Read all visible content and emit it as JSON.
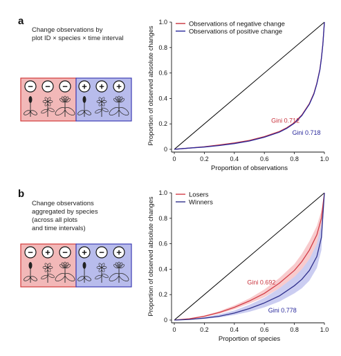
{
  "panels": [
    {
      "letter": "a",
      "caption": "Change observations by\nplot ID × species × time interval",
      "diagram": {
        "left_signs": [
          "−",
          "−",
          "−"
        ],
        "right_signs": [
          "+",
          "+",
          "+"
        ],
        "left_color": "#f2b8b8",
        "right_color": "#b8bcec",
        "left_border": "#d23a3a",
        "right_border": "#3c3cb4"
      }
    },
    {
      "letter": "b",
      "caption": "Change observations\naggregated by species\n(across all plots\nand time intervals)",
      "diagram": {
        "left_signs": [
          "−",
          "+",
          "−"
        ],
        "right_signs": [
          "+",
          "−",
          "+"
        ],
        "left_color": "#f2b8b8",
        "right_color": "#b8bcec",
        "left_border": "#d23a3a",
        "right_border": "#3c3cb4"
      }
    }
  ],
  "chart_data": [
    {
      "type": "line",
      "title": "",
      "xlabel": "Proportion of observations",
      "ylabel": "Proportion of observed absolute changes",
      "xlim": [
        0,
        1
      ],
      "ylim": [
        0,
        1
      ],
      "x_ticks": [
        "0",
        "0.2",
        "0.4",
        "0.6",
        "0.8",
        "1.0"
      ],
      "y_ticks": [
        "0",
        "0.2",
        "0.4",
        "0.6",
        "0.8",
        "1.0"
      ],
      "legend_position": "top-left",
      "grid": false,
      "equality_line": {
        "x": [
          0,
          1
        ],
        "y": [
          0,
          1
        ],
        "color": "#000000"
      },
      "series": [
        {
          "name": "Observations of negative change",
          "color": "#c8323c",
          "x": [
            0,
            0.1,
            0.2,
            0.3,
            0.4,
            0.5,
            0.6,
            0.7,
            0.75,
            0.8,
            0.85,
            0.9,
            0.93,
            0.95,
            0.97,
            0.98,
            0.99,
            1.0
          ],
          "y": [
            0,
            0.01,
            0.02,
            0.035,
            0.05,
            0.07,
            0.1,
            0.14,
            0.17,
            0.21,
            0.27,
            0.36,
            0.44,
            0.52,
            0.63,
            0.72,
            0.83,
            1.0
          ]
        },
        {
          "name": "Observations of positive change",
          "color": "#28289b",
          "x": [
            0,
            0.1,
            0.2,
            0.3,
            0.4,
            0.5,
            0.6,
            0.7,
            0.75,
            0.8,
            0.85,
            0.9,
            0.93,
            0.95,
            0.97,
            0.98,
            0.99,
            1.0
          ],
          "y": [
            0,
            0.01,
            0.018,
            0.03,
            0.045,
            0.065,
            0.095,
            0.135,
            0.165,
            0.205,
            0.265,
            0.355,
            0.435,
            0.515,
            0.625,
            0.715,
            0.825,
            1.0
          ]
        }
      ],
      "annotations": [
        {
          "text": "Gini 0.712",
          "x": 0.74,
          "y": 0.21,
          "color": "#c8323c"
        },
        {
          "text": "Gini 0.718",
          "x": 0.88,
          "y": 0.115,
          "color": "#28289b"
        }
      ]
    },
    {
      "type": "line",
      "title": "",
      "xlabel": "Proportion of species",
      "ylabel": "Proportion of observed absolute changes",
      "xlim": [
        0,
        1
      ],
      "ylim": [
        0,
        1
      ],
      "x_ticks": [
        "0",
        "0.2",
        "0.4",
        "0.6",
        "0.8",
        "1.0"
      ],
      "y_ticks": [
        "0",
        "0.2",
        "0.4",
        "0.6",
        "0.8",
        "1.0"
      ],
      "legend_position": "top-left",
      "grid": false,
      "equality_line": {
        "x": [
          0,
          1
        ],
        "y": [
          0,
          1
        ],
        "color": "#000000"
      },
      "series": [
        {
          "name": "Losers",
          "color": "#d23c46",
          "band_color": "#f2a0a4",
          "x": [
            0,
            0.1,
            0.2,
            0.3,
            0.4,
            0.5,
            0.6,
            0.7,
            0.8,
            0.85,
            0.9,
            0.95,
            0.98,
            1.0
          ],
          "y": [
            0,
            0.01,
            0.03,
            0.06,
            0.1,
            0.15,
            0.21,
            0.29,
            0.39,
            0.46,
            0.55,
            0.67,
            0.8,
            1.0
          ],
          "y_lower": [
            0,
            0.008,
            0.024,
            0.05,
            0.085,
            0.13,
            0.18,
            0.25,
            0.34,
            0.4,
            0.48,
            0.6,
            0.74,
            1.0
          ],
          "y_upper": [
            0,
            0.012,
            0.036,
            0.07,
            0.115,
            0.17,
            0.24,
            0.33,
            0.44,
            0.52,
            0.62,
            0.74,
            0.86,
            1.0
          ]
        },
        {
          "name": "Winners",
          "color": "#30308c",
          "band_color": "#a0a4e6",
          "x": [
            0,
            0.1,
            0.2,
            0.3,
            0.4,
            0.5,
            0.6,
            0.7,
            0.8,
            0.85,
            0.9,
            0.95,
            0.98,
            1.0
          ],
          "y": [
            0,
            0.005,
            0.015,
            0.03,
            0.055,
            0.09,
            0.135,
            0.19,
            0.27,
            0.32,
            0.39,
            0.5,
            0.65,
            1.0
          ],
          "y_lower": [
            0,
            0.003,
            0.01,
            0.02,
            0.04,
            0.065,
            0.1,
            0.145,
            0.21,
            0.25,
            0.31,
            0.41,
            0.55,
            1.0
          ],
          "y_upper": [
            0,
            0.008,
            0.022,
            0.045,
            0.075,
            0.12,
            0.175,
            0.25,
            0.34,
            0.4,
            0.48,
            0.6,
            0.75,
            1.0
          ]
        }
      ],
      "annotations": [
        {
          "text": "Gini 0.692",
          "x": 0.58,
          "y": 0.28,
          "color": "#c8323c"
        },
        {
          "text": "Gini 0.778",
          "x": 0.72,
          "y": 0.06,
          "color": "#28289b"
        }
      ]
    }
  ]
}
